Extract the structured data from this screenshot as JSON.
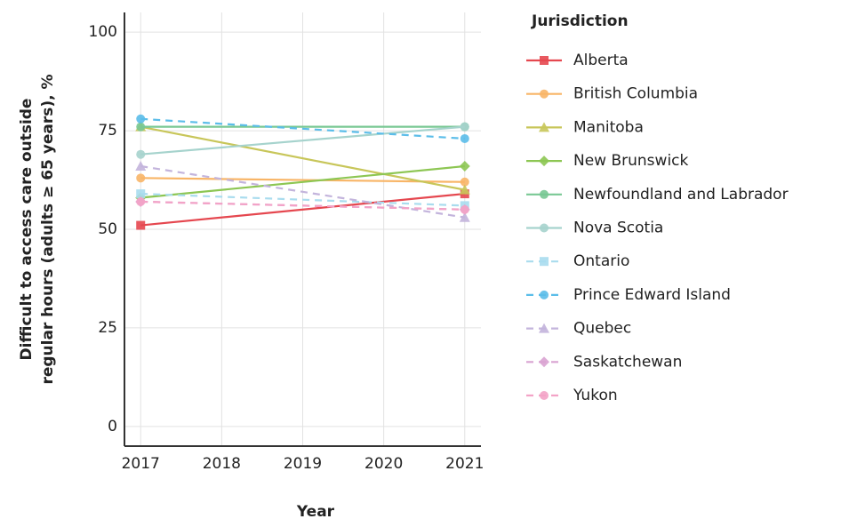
{
  "chart_data": {
    "type": "line",
    "x_label": "Year",
    "y_label": [
      "Difficult to access care outside",
      "regular hours (adults ≥ 65 years), %"
    ],
    "legend_title": "Jurisdiction",
    "x": [
      2017,
      2021
    ],
    "xlim": [
      2016.8,
      2021.2
    ],
    "xticks": [
      2017,
      2018,
      2019,
      2020,
      2021
    ],
    "ylim": [
      -5,
      105
    ],
    "yticks": [
      0,
      25,
      50,
      75,
      100
    ],
    "grid": true,
    "legend": "right",
    "series": [
      {
        "name": "Alberta",
        "color": "#e5474f",
        "marker": "square",
        "dashed": false,
        "values": [
          51,
          59
        ]
      },
      {
        "name": "British Columbia",
        "color": "#f8b567",
        "marker": "circle",
        "dashed": false,
        "values": [
          63,
          62
        ]
      },
      {
        "name": "Manitoba",
        "color": "#c8c65a",
        "marker": "triangle",
        "dashed": false,
        "values": [
          76,
          60
        ]
      },
      {
        "name": "New Brunswick",
        "color": "#8dc653",
        "marker": "diamond",
        "dashed": false,
        "values": [
          58,
          66
        ]
      },
      {
        "name": "Newfoundland and Labrador",
        "color": "#79c894",
        "marker": "circle",
        "dashed": false,
        "values": [
          76,
          76
        ]
      },
      {
        "name": "Nova Scotia",
        "color": "#a6d3cd",
        "marker": "circle",
        "dashed": false,
        "values": [
          69,
          76
        ]
      },
      {
        "name": "Ontario",
        "color": "#a9dcee",
        "marker": "square",
        "dashed": true,
        "values": [
          59,
          56
        ]
      },
      {
        "name": "Prince Edward Island",
        "color": "#5bbde9",
        "marker": "circle",
        "dashed": true,
        "values": [
          78,
          73
        ]
      },
      {
        "name": "Quebec",
        "color": "#c3b4dc",
        "marker": "triangle",
        "dashed": true,
        "values": [
          66,
          53
        ]
      },
      {
        "name": "Saskatchewan",
        "color": "#d9a3d2",
        "marker": "diamond",
        "dashed": true,
        "values": [
          57,
          55
        ]
      },
      {
        "name": "Yukon",
        "color": "#f3a3c7",
        "marker": "circle",
        "dashed": true,
        "values": [
          57,
          55
        ]
      }
    ]
  }
}
